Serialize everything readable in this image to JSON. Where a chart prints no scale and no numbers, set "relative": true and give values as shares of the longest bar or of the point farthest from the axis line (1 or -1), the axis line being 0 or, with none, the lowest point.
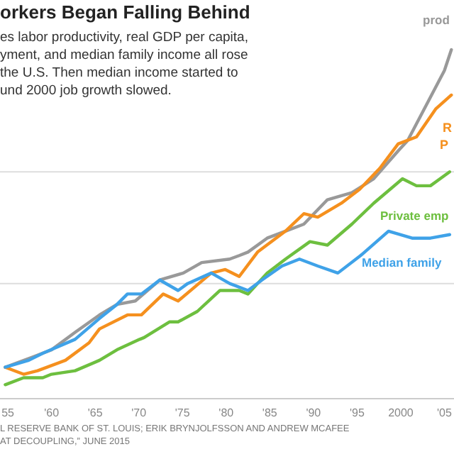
{
  "chart_data": {
    "type": "line",
    "title": "orkers Began Falling Behind",
    "subtitle": "es labor productivity, real GDP per capita,\nyment, and median family income all rose\nthe U.S. Then median income started to\nund 2000 job growth slowed.",
    "relative": true,
    "xlim": [
      1954.1,
      2006.1
    ],
    "xticks": [
      {
        "value": 1955,
        "label": "55"
      },
      {
        "value": 1960,
        "label": "'60"
      },
      {
        "value": 1965,
        "label": "'65"
      },
      {
        "value": 1970,
        "label": "'70"
      },
      {
        "value": 1975,
        "label": "'75"
      },
      {
        "value": 1980,
        "label": "'80"
      },
      {
        "value": 1985,
        "label": "'85"
      },
      {
        "value": 1990,
        "label": "'90"
      },
      {
        "value": 1995,
        "label": "'95"
      },
      {
        "value": 2000,
        "label": "2000"
      },
      {
        "value": 2005,
        "label": "'05"
      }
    ],
    "series": [
      {
        "name": "prod",
        "color": "#999999",
        "x": [
          1954.7,
          1957.9,
          1960,
          1962.7,
          1965.5,
          1967.5,
          1969.6,
          1972.4,
          1975.1,
          1977.2,
          1980.4,
          1981.5,
          1982.5,
          1984.7,
          1986.8,
          1988.9,
          1991.6,
          1994.4,
          1996.9,
          1999.7,
          2000.8,
          2002.9,
          2005,
          2005.8
        ],
        "values": [
          0.09,
          0.12,
          0.14,
          0.19,
          0.24,
          0.27,
          0.28,
          0.34,
          0.36,
          0.39,
          0.4,
          0.41,
          0.42,
          0.46,
          0.48,
          0.5,
          0.57,
          0.59,
          0.63,
          0.71,
          0.74,
          0.84,
          0.94,
          1
        ]
      },
      {
        "color": "#f5901e",
        "x": [
          1954.7,
          1956.8,
          1958.4,
          1961.6,
          1964.3,
          1965.5,
          1968.7,
          1970.3,
          1972.8,
          1974.5,
          1978.3,
          1979.9,
          1981.5,
          1983.6,
          1986.8,
          1988.9,
          1990.5,
          1993.2,
          1995.3,
          1997.6,
          1999.7,
          2001.8,
          2004,
          2005.8
        ],
        "values": [
          0.09,
          0.07,
          0.08,
          0.11,
          0.16,
          0.2,
          0.24,
          0.24,
          0.3,
          0.28,
          0.36,
          0.37,
          0.35,
          0.42,
          0.48,
          0.53,
          0.52,
          0.56,
          0.6,
          0.66,
          0.73,
          0.75,
          0.83,
          0.87
        ]
      },
      {
        "name": "Private emp",
        "color": "#6dbf3f",
        "x": [
          1954.7,
          1956.8,
          1959,
          1960,
          1962.7,
          1965.5,
          1967.5,
          1970.1,
          1970.6,
          1973.5,
          1974.5,
          1976.7,
          1979.3,
          1981.5,
          1982.5,
          1984.7,
          1986.8,
          1989.6,
          1991.6,
          1994.4,
          1996.9,
          2000.2,
          2001.8,
          2003.4,
          2005.6
        ],
        "values": [
          0.04,
          0.06,
          0.06,
          0.07,
          0.08,
          0.11,
          0.14,
          0.17,
          0.175,
          0.22,
          0.22,
          0.25,
          0.31,
          0.31,
          0.3,
          0.36,
          0.4,
          0.45,
          0.44,
          0.5,
          0.56,
          0.63,
          0.61,
          0.61,
          0.65
        ]
      },
      {
        "name": "Median family",
        "color": "#3fa2e8",
        "x": [
          1954.7,
          1957.4,
          1959,
          1962.7,
          1965.5,
          1967.5,
          1968.7,
          1970.3,
          1972.4,
          1974.5,
          1975.6,
          1978.3,
          1980.4,
          1982.5,
          1984.1,
          1986.4,
          1988.4,
          1990.5,
          1992.8,
          1995.4,
          1998.6,
          2001.3,
          2003.4,
          2005.6
        ],
        "values": [
          0.09,
          0.11,
          0.13,
          0.17,
          0.23,
          0.27,
          0.3,
          0.3,
          0.34,
          0.31,
          0.33,
          0.36,
          0.33,
          0.31,
          0.34,
          0.38,
          0.4,
          0.38,
          0.36,
          0.41,
          0.48,
          0.46,
          0.46,
          0.47
        ]
      }
    ],
    "ref_lines": [
      {
        "axis": "y",
        "value": 0.33,
        "color": "#dddddd"
      },
      {
        "axis": "y",
        "value": 0.65,
        "color": "#dddddd"
      }
    ],
    "annotations": [
      "R",
      "P",
      "L RESERVE BANK OF ST. LOUIS; ERIK BRYNJOLFSSON AND ANDREW MCAFEE",
      "AT DECOUPLING,” JUNE 2015"
    ]
  }
}
